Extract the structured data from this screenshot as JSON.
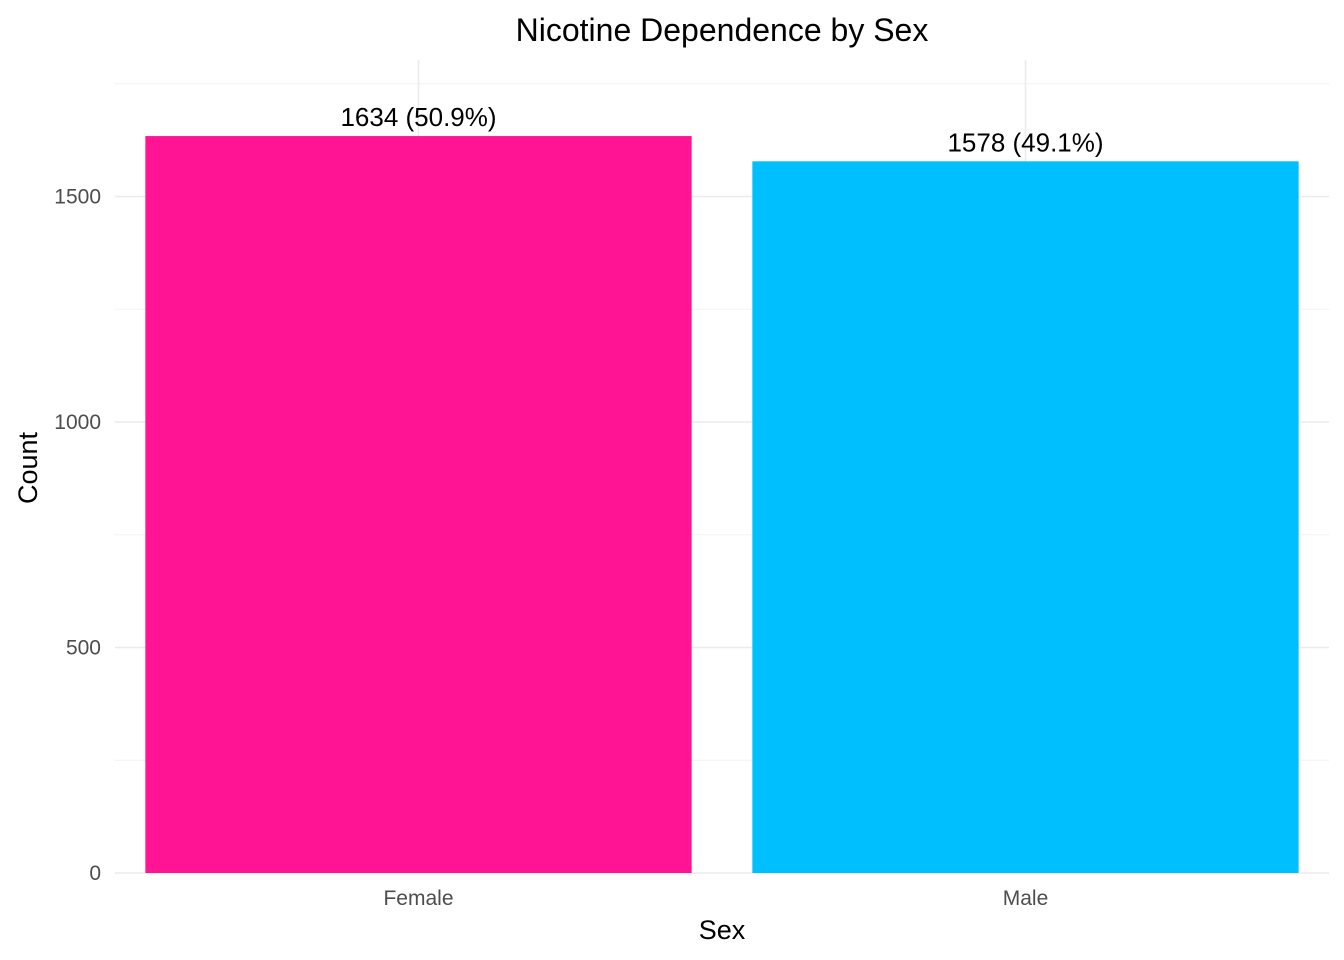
{
  "chart_data": {
    "type": "bar",
    "title": "Nicotine Dependence by Sex",
    "xlabel": "Sex",
    "ylabel": "Count",
    "categories": [
      "Female",
      "Male"
    ],
    "values": [
      1634,
      1578
    ],
    "data_labels": [
      "1634 (50.9%)",
      "1578 (49.1%)"
    ],
    "colors": [
      "#ff1493",
      "#00bfff"
    ],
    "ylim": [
      0,
      1750
    ],
    "yticks": [
      0,
      500,
      1000,
      1500
    ],
    "ytick_labels": [
      "0",
      "500",
      "1000",
      "1500"
    ],
    "grid": true,
    "legend": "none"
  }
}
